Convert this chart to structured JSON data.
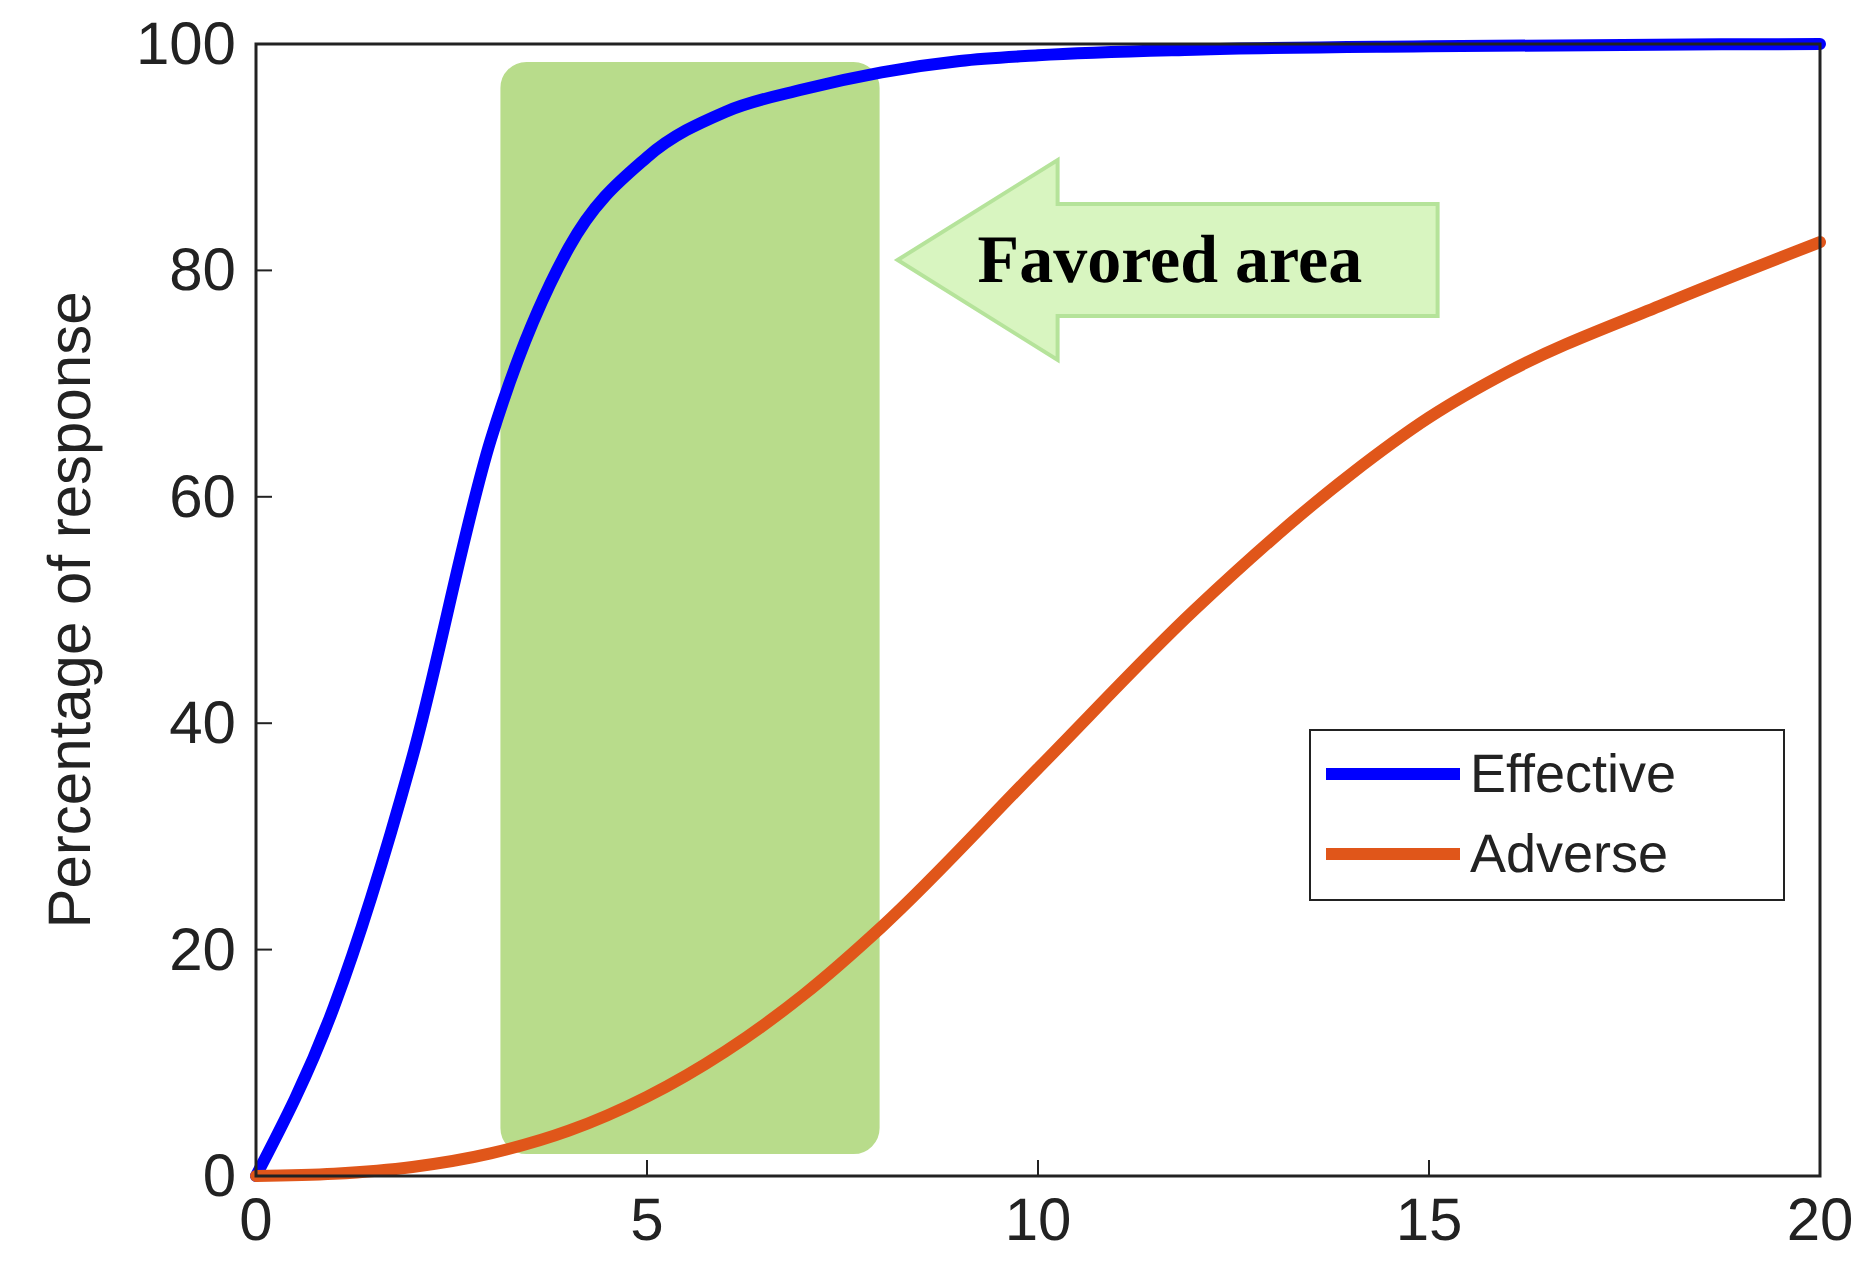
{
  "chart_data": {
    "type": "line",
    "ylabel": "Percentage of response",
    "xlim": [
      0,
      20
    ],
    "ylim": [
      0,
      100
    ],
    "xticks": [
      0,
      5,
      10,
      15,
      20
    ],
    "yticks": [
      0,
      20,
      40,
      60,
      80,
      100
    ],
    "grid": false,
    "legend": "right",
    "line_style": "solid",
    "marker": "none",
    "series": [
      {
        "name": "Effective",
        "color": "#0000ff",
        "x": [
          0,
          1,
          2,
          3,
          4,
          5,
          6,
          7,
          8,
          9,
          10,
          12,
          15,
          20
        ],
        "values": [
          0,
          15,
          37,
          65,
          82,
          90,
          94,
          96,
          97.5,
          98.5,
          99,
          99.5,
          99.8,
          100
        ]
      },
      {
        "name": "Adverse",
        "color": "#e0561a",
        "x": [
          0,
          1,
          2,
          3,
          4,
          5,
          6,
          7,
          8,
          10,
          12,
          14,
          15,
          16,
          18,
          20
        ],
        "values": [
          0,
          0.2,
          0.8,
          2,
          4,
          7,
          11,
          16,
          22,
          36,
          50,
          62,
          67,
          71,
          77,
          82.5
        ]
      }
    ],
    "bands": [
      {
        "axis": "x",
        "from": 3.1,
        "to": 8,
        "label": "Favored area",
        "color": "#9acd5a"
      }
    ]
  }
}
